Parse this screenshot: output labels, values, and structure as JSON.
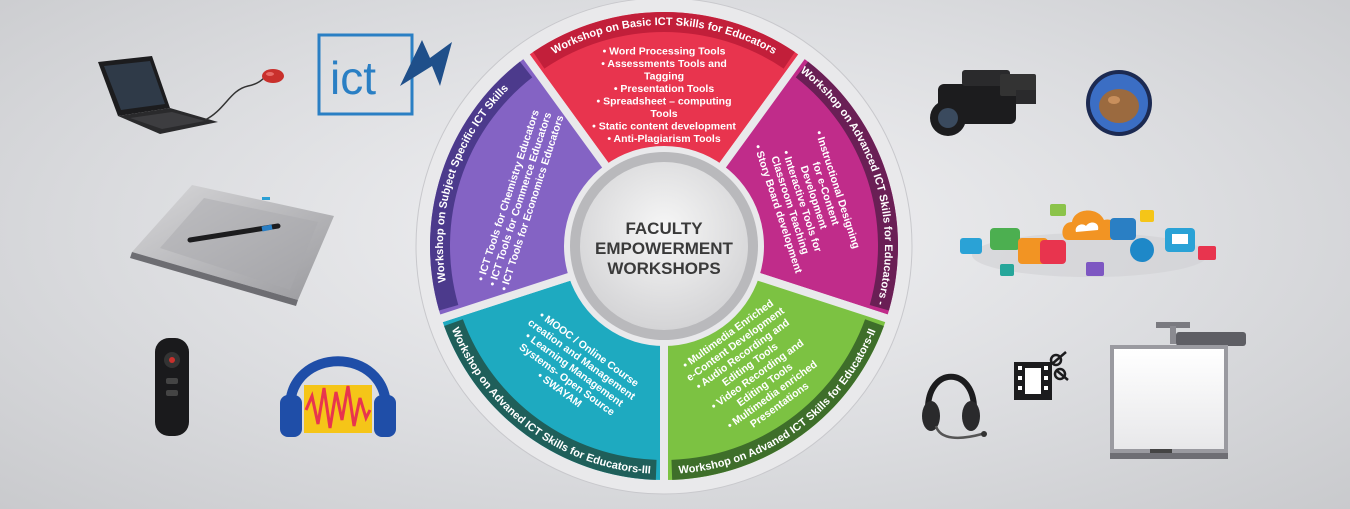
{
  "center": {
    "lines": [
      "FACULTY",
      "EMPOWERMENT",
      "WORKSHOPS"
    ]
  },
  "segments": [
    {
      "id": "basic",
      "color": "#e8344e",
      "band_color": "#c21f3a",
      "title": "Workshop on Basic ICT Skills for Educators",
      "items": [
        "Word Processing Tools",
        "Assessments Tools and Tagging",
        "Presentation Tools",
        "Spreadsheet – computing Tools",
        "Static content development",
        "Anti-Plagiarism Tools"
      ]
    },
    {
      "id": "advanced-1",
      "color": "#c02c8a",
      "band_color": "#6a1f55",
      "title": "Workshop on Advanced ICT Skills for Educators -I",
      "items": [
        "Instructional Designing for e-Content Development",
        "Interactive Tools for Classroom Teaching",
        "Story Board development"
      ]
    },
    {
      "id": "advanced-2",
      "color": "#7cc242",
      "band_color": "#3e6e2a",
      "title": "Workshop on Advaned ICT Skills for Educators-II",
      "items": [
        "Multimedia Enriched e-Content Development",
        "Audio Recording and Editing Tools",
        "Video Recording and Editing Tools",
        "Multimedia enriched Presentations"
      ]
    },
    {
      "id": "advanced-3",
      "color": "#1eaac0",
      "band_color": "#1f5f5a",
      "title": "Workshop on Advaned ICT Skills for Educators-III",
      "items": [
        "MOOC / Online Course creation and Management",
        "Learning Management Systems- Open Source",
        "SWAYAM"
      ]
    },
    {
      "id": "subject",
      "color": "#8463c4",
      "band_color": "#4c3a8c",
      "title": "Workshop on Subject Specific ICT Skills",
      "items": [
        "ICT Tools for Chemistry Educators",
        "ICT Tools for Commerce Educators",
        "ICT Tools for Economics Educators"
      ]
    }
  ],
  "logo": {
    "text": "ict"
  },
  "icons": [
    "laptop-icon",
    "ict-logo-icon",
    "drawing-tablet-icon",
    "presenter-remote-icon",
    "audacity-icon",
    "video-camera-icon",
    "gimp-icon",
    "cloud-apps-icon",
    "headset-icon",
    "video-editing-icon",
    "smartboard-projector-icon"
  ]
}
